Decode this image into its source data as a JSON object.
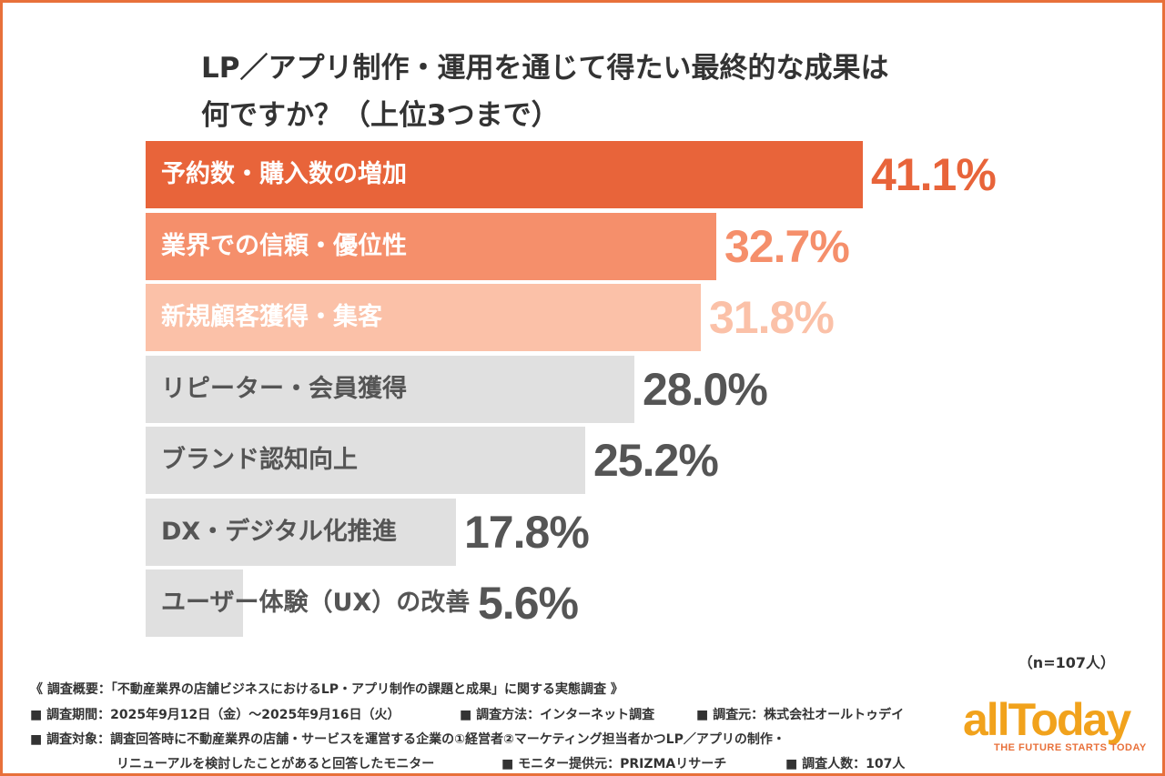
{
  "title": {
    "line1": "LP／アプリ制作・運用を通じて得たい最終的な成果は",
    "line2": "何ですか？（上位3つまで）"
  },
  "chart_data": {
    "type": "bar",
    "orientation": "horizontal",
    "categories": [
      "予約数・購入数の増加",
      "業界での信頼・優位性",
      "新規顧客獲得・集客",
      "リピーター・会員獲得",
      "ブランド認知向上",
      "DX・デジタル化推進",
      "ユーザー体験（UX）の改善"
    ],
    "values": [
      41.1,
      32.7,
      31.8,
      28.0,
      25.2,
      17.8,
      5.6
    ],
    "value_labels": [
      "41.1%",
      "32.7%",
      "31.8%",
      "28.0%",
      "25.2%",
      "17.8%",
      "5.6%"
    ],
    "unit": "%",
    "bar_colors": [
      "#e8643a",
      "#f58f6b",
      "#fbc1a8",
      "#e0e0e0",
      "#e0e0e0",
      "#e0e0e0",
      "#e0e0e0"
    ],
    "label_colors": [
      "#ffffff",
      "#ffffff",
      "#ffffff",
      "#555555",
      "#555555",
      "#555555",
      "#555555"
    ],
    "value_colors": [
      "#e8643a",
      "#f58f6b",
      "#fbc1a8",
      "#555555",
      "#555555",
      "#555555",
      "#555555"
    ]
  },
  "sample_size": "（n=107人）",
  "notes": {
    "overview": "《 調査概要：「不動産業界の店舗ビジネスにおけるLP・アプリ制作の課題と成果」に関する実態調査 》",
    "period": "■ 調査期間：2025年9月12日（金）～2025年9月16日（火）",
    "method": "■ 調査方法：インターネット調査",
    "source": "■ 調査元：株式会社オールトゥデイ",
    "target": "■ 調査対象：調査回答時に不動産業界の店舗・サービスを運営する企業の①経営者②マーケティング担当者かつLP／アプリの制作・",
    "target_cont": "リニューアルを検討したことがあると回答したモニター",
    "monitor": "■ モニター提供元：PRIZMAリサーチ",
    "count": "■ 調査人数：107人"
  },
  "logo": {
    "word": "allToday",
    "tagline": "THE FUTURE STARTS TODAY",
    "color": "#f1a21c",
    "tagline_color": "#e8703a"
  }
}
